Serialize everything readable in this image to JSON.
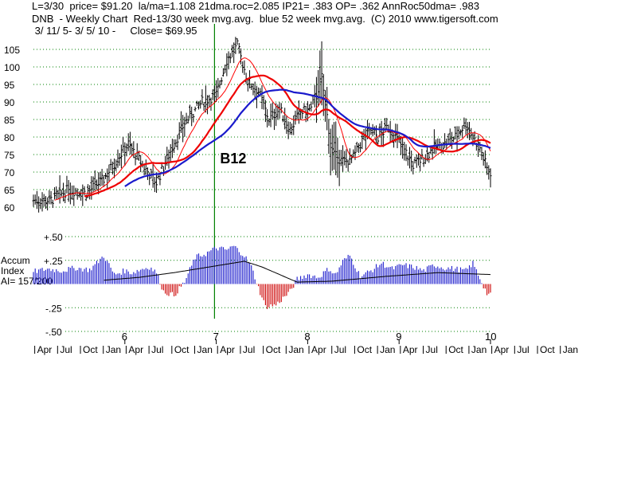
{
  "header": {
    "line1": "L=3/30  price= $91.20  la/ma=1.108 21dma.roc=2.085 IP21= .383 OP= .362 AnnRoc50dma= .983",
    "line2": "DNB  - Weekly Chart  Red-13/30 week mvg.avg.  blue 52 week mvg.avg.  (C) 2010 www.tigersoft.com",
    "line3": " 3/ 11/ 5- 3/ 5/ 10 -     Close= $69.95"
  },
  "side_labels": {
    "accum": "Accum",
    "index": "Index",
    "ai": "AI= 157/200"
  },
  "colors": {
    "price_bars": "#000000",
    "ma_13": "#ff0000",
    "ma_30": "#ee0000",
    "ma_52": "#1a1acc",
    "accum_positive": "#1a1acc",
    "accum_negative": "#cc0000",
    "accum_signal": "#000000",
    "vertical_marker": "#008000",
    "grid": "#008000"
  },
  "chart_data": [
    {
      "type": "line",
      "title": "",
      "ylim": [
        58,
        110
      ],
      "y_ticks": [
        60,
        65,
        70,
        75,
        80,
        85,
        90,
        95,
        100,
        105
      ],
      "y_tick_labels": [
        "60",
        "65",
        "70",
        "75",
        "80",
        "85",
        "90",
        "95",
        "100",
        "105"
      ],
      "x_year_labels": [
        "6",
        "7",
        "8",
        "9",
        "10"
      ],
      "x_month_labels": [
        "Apr",
        "Jul",
        "Oct",
        "Jan",
        "Apr",
        "Jul",
        "Oct",
        "Jan",
        "Apr",
        "Jul",
        "Oct",
        "Jan",
        "Apr",
        "Jul",
        "Oct",
        "Jan",
        "Apr",
        "Jul",
        "Oct",
        "Jan",
        "Apr",
        "Jul",
        "Oct",
        "Jan"
      ],
      "x_range_weeks": [
        0,
        260
      ],
      "grid": "horizontal dotted",
      "annotation": {
        "label": "B12",
        "week": 103
      },
      "series": [
        {
          "kind": "ohlc",
          "anchors_week": [
            0,
            10,
            20,
            30,
            40,
            48,
            54,
            62,
            70,
            78,
            86,
            96,
            104,
            110,
            116,
            122,
            128,
            134,
            140,
            146,
            152,
            158,
            164,
            170,
            176,
            182,
            188,
            192,
            196,
            202,
            210,
            216,
            222,
            228,
            234,
            240,
            246,
            250,
            254,
            258,
            260
          ],
          "anchors_close": [
            62,
            62,
            65,
            64,
            68,
            74,
            78,
            72,
            67,
            76,
            84,
            90,
            92,
            102,
            106,
            96,
            93,
            85,
            88,
            82,
            87,
            88,
            97,
            75,
            73,
            74,
            80,
            82,
            80,
            83,
            77,
            72,
            74,
            77,
            78,
            80,
            84,
            80,
            77,
            71,
            70
          ]
        },
        {
          "kind": "ma",
          "period": 13,
          "style": "thin"
        },
        {
          "kind": "ma",
          "period": 30,
          "style": "thick"
        },
        {
          "kind": "ma",
          "period": 52,
          "style": "thick",
          "start_week": 52
        }
      ]
    },
    {
      "type": "bar",
      "title": "",
      "ylim": [
        -0.55,
        0.55
      ],
      "y_ticks": [
        0.5,
        0.25,
        -0.25,
        -0.5
      ],
      "y_tick_labels": [
        "+.50",
        "+.25",
        "-.25",
        "-.50"
      ],
      "anchors_week": [
        0,
        8,
        16,
        24,
        32,
        36,
        40,
        46,
        52,
        56,
        62,
        66,
        70,
        74,
        80,
        86,
        92,
        98,
        104,
        110,
        114,
        120,
        124,
        128,
        132,
        138,
        142,
        146,
        150,
        156,
        162,
        168,
        172,
        176,
        180,
        186,
        192,
        198,
        204,
        210,
        216,
        222,
        228,
        234,
        240,
        246,
        250,
        254,
        258,
        260
      ],
      "anchors_value": [
        0.13,
        0.16,
        0.14,
        0.17,
        0.15,
        0.22,
        0.3,
        0.1,
        0.14,
        0.12,
        0.16,
        0.18,
        0.12,
        -0.08,
        -0.12,
        0.02,
        0.28,
        0.32,
        0.38,
        0.36,
        0.4,
        0.3,
        0.18,
        -0.04,
        -0.24,
        -0.22,
        -0.15,
        -0.08,
        0.05,
        0.1,
        0.07,
        0.16,
        0.1,
        0.24,
        0.3,
        0.08,
        0.14,
        0.22,
        0.16,
        0.2,
        0.18,
        0.14,
        0.2,
        0.17,
        0.16,
        0.14,
        0.22,
        0.06,
        -0.1,
        -0.12
      ],
      "signal_anchors_week": [
        40,
        60,
        80,
        100,
        120,
        130,
        150,
        170,
        200,
        230,
        260
      ],
      "signal_anchors_value": [
        0.04,
        0.07,
        0.12,
        0.18,
        0.24,
        0.18,
        0.02,
        0.03,
        0.08,
        0.12,
        0.1
      ]
    }
  ]
}
